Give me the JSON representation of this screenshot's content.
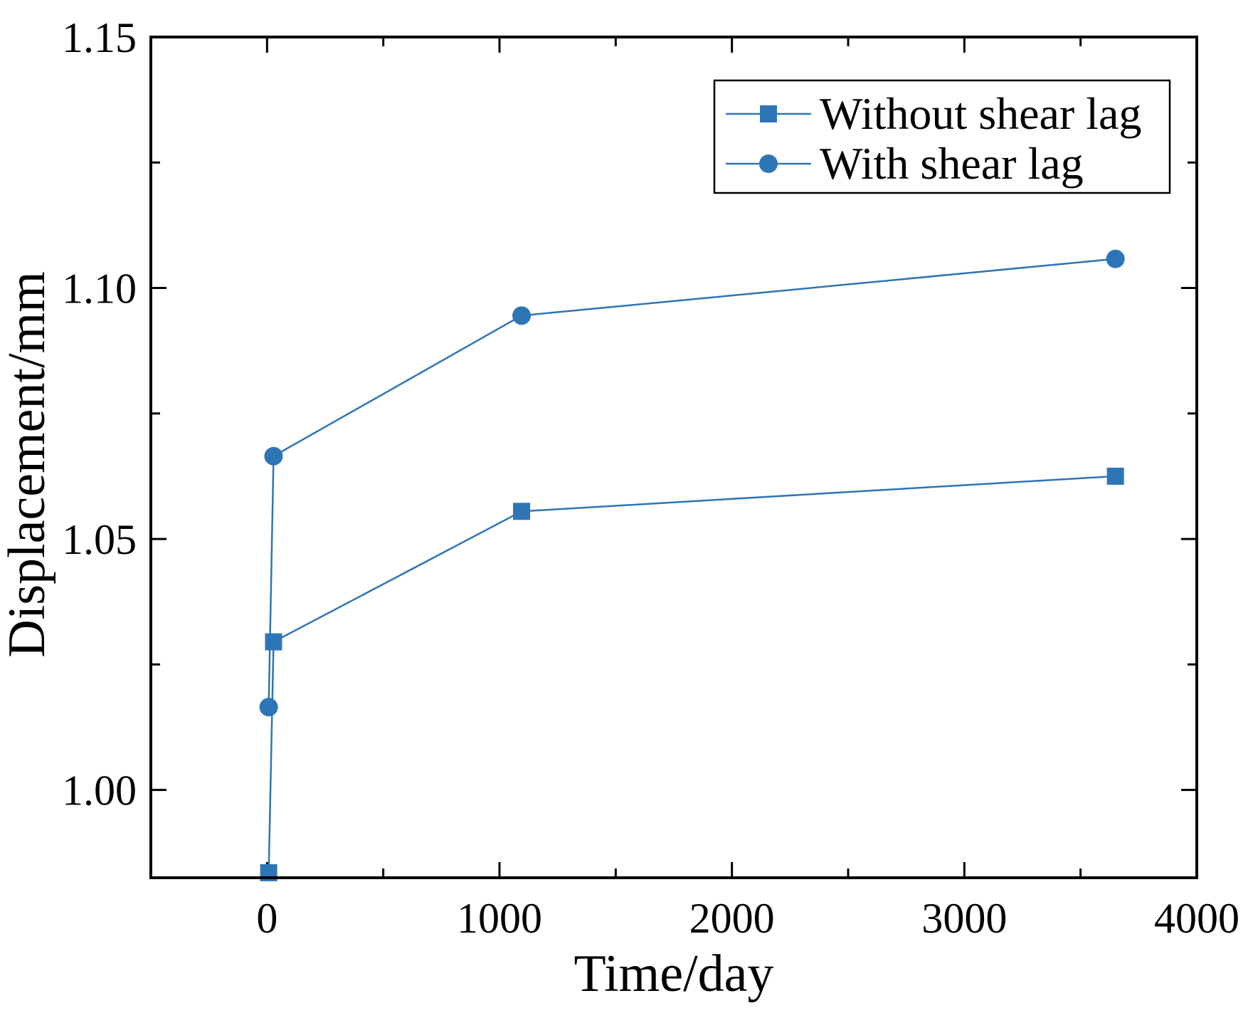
{
  "chart_data": {
    "type": "line",
    "title": "",
    "xlabel": "Time/day",
    "ylabel": "Displacement/mm",
    "xlim": [
      -500,
      4000
    ],
    "ylim": [
      0.9825,
      1.15
    ],
    "xticks": [
      0,
      1000,
      2000,
      3000,
      4000
    ],
    "xtick_labels": [
      "0",
      "1000",
      "2000",
      "3000",
      "4000"
    ],
    "yticks": [
      1.0,
      1.05,
      1.1,
      1.15
    ],
    "ytick_labels": [
      "1.00",
      "1.05",
      "1.10",
      "1.15"
    ],
    "legend_position": "top-right",
    "colors": {
      "series": "#2E75B6",
      "axis": "#000000"
    },
    "series": [
      {
        "name": "Without shear lag",
        "marker": "square",
        "x": [
          7,
          28,
          1095,
          3650
        ],
        "y": [
          0.9835,
          1.0295,
          1.0555,
          1.0625
        ]
      },
      {
        "name": "With shear lag",
        "marker": "circle",
        "x": [
          7,
          28,
          1095,
          3650
        ],
        "y": [
          1.0165,
          1.0665,
          1.0945,
          1.1058
        ]
      }
    ]
  }
}
